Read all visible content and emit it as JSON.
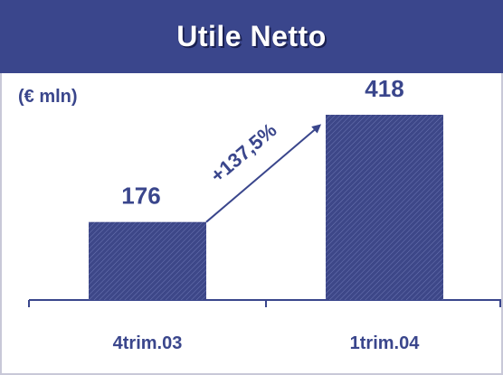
{
  "header": {
    "title": "Utile Netto"
  },
  "unit_label": "(€ mln)",
  "annotation": {
    "growth_label": "+137,5%"
  },
  "colors": {
    "title_bar": "#3a468c",
    "bar_fill": "#3d4788",
    "text": "#3a468c",
    "arrow": "#3a468c",
    "axis": "#3a468c"
  },
  "chart_data": {
    "type": "bar",
    "title": "Utile Netto",
    "ylabel": "(€ mln)",
    "categories": [
      "4trim.03",
      "1trim.04"
    ],
    "values": [
      176,
      418
    ],
    "data_labels": [
      "176",
      "418"
    ],
    "grid": false
  }
}
